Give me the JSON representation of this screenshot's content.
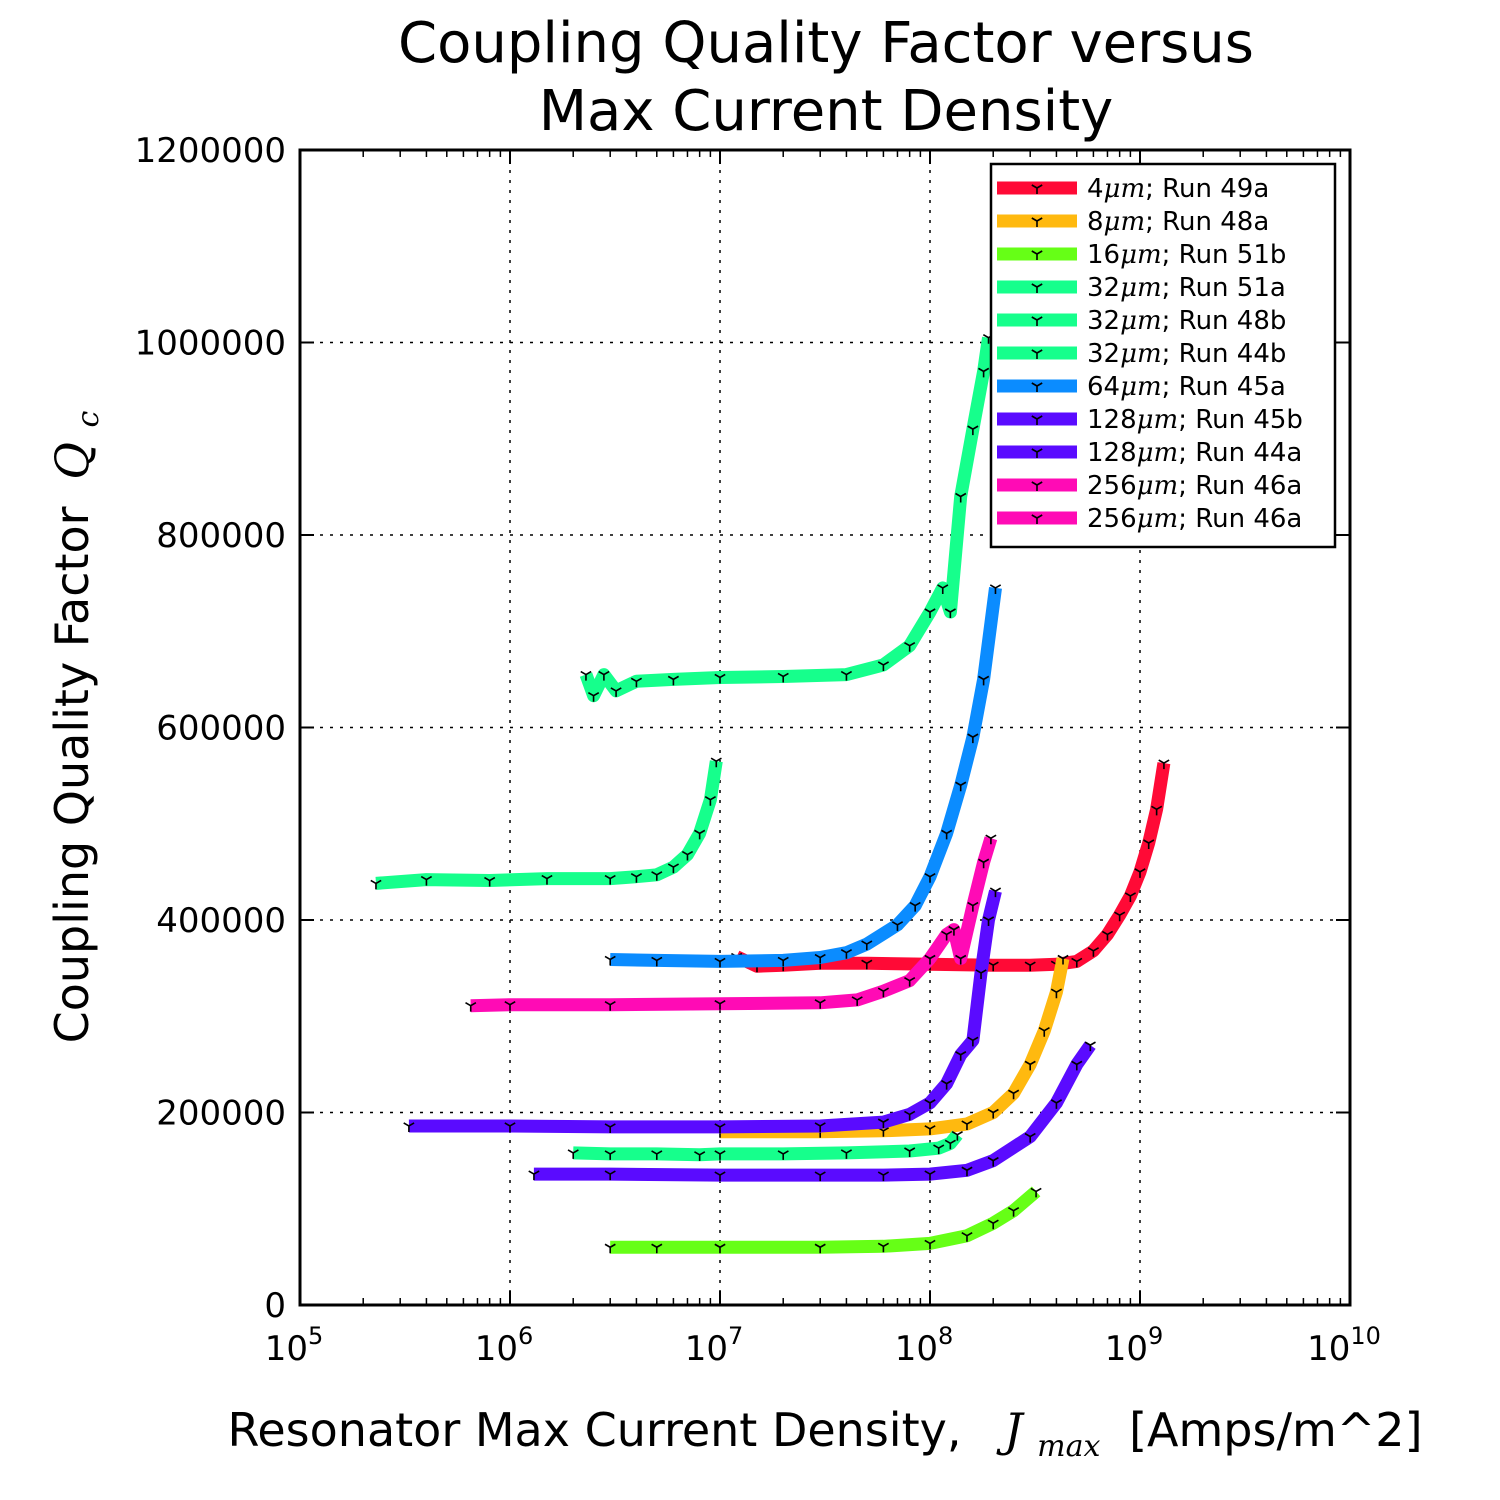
{
  "chart_data": {
    "type": "line",
    "title": [
      "Coupling Quality Factor versus",
      "Max Current Density"
    ],
    "xlabel": {
      "text": "Resonator Max Current Density,",
      "math": "J",
      "math_sub": "max",
      "unit": "[Amps/m^2]"
    },
    "ylabel": {
      "text": "Coupling Quality Factor",
      "math": "Q",
      "math_sub": "c"
    },
    "x_scale": "log",
    "xlim": [
      100000,
      10000000000
    ],
    "ylim": [
      0,
      1200000
    ],
    "x_tick_labels": [
      {
        "base": "10",
        "exp": "5",
        "value": 100000
      },
      {
        "base": "10",
        "exp": "6",
        "value": 1000000
      },
      {
        "base": "10",
        "exp": "7",
        "value": 10000000
      },
      {
        "base": "10",
        "exp": "8",
        "value": 100000000
      },
      {
        "base": "10",
        "exp": "9",
        "value": 1000000000
      },
      {
        "base": "10",
        "exp": "10",
        "value": 10000000000
      }
    ],
    "y_ticks": [
      0,
      200000,
      400000,
      600000,
      800000,
      1000000,
      1200000
    ],
    "y_tick_labels": [
      "0",
      "200000",
      "400000",
      "600000",
      "800000",
      "1000000",
      "1200000"
    ],
    "grid": true,
    "legend_position": "top-right",
    "series": [
      {
        "name": "4μm; Run 49a",
        "size": "4",
        "unit": "μm",
        "run": "; Run 49a",
        "color": "#ff0a36",
        "x": [
          12000000,
          15000000,
          20000000,
          30000000,
          50000000,
          100000000,
          200000000,
          300000000,
          400000000,
          500000000,
          600000000,
          700000000,
          800000000,
          900000000,
          1000000000,
          1100000000,
          1200000000,
          1300000000
        ],
        "y": [
          362000,
          352000,
          353000,
          355000,
          355000,
          354000,
          353000,
          353000,
          354000,
          357000,
          368000,
          385000,
          405000,
          425000,
          450000,
          480000,
          515000,
          563000
        ]
      },
      {
        "name": "8μm; Run 48a",
        "size": "8",
        "unit": "μm",
        "run": "; Run 48a",
        "color": "#ffb90f",
        "x": [
          10000000,
          30000000,
          60000000,
          100000000,
          150000000,
          200000000,
          250000000,
          300000000,
          350000000,
          400000000,
          430000000
        ],
        "y": [
          180000,
          180000,
          181000,
          183000,
          188000,
          200000,
          220000,
          250000,
          285000,
          325000,
          360000
        ]
      },
      {
        "name": "16μm; Run 51b",
        "size": "16",
        "unit": "μm",
        "run": "; Run 51b",
        "color": "#66ff16",
        "x": [
          3000000,
          5000000,
          10000000,
          30000000,
          60000000,
          100000000,
          150000000,
          200000000,
          250000000,
          320000000
        ],
        "y": [
          60000,
          60000,
          60000,
          60000,
          61000,
          64000,
          72000,
          85000,
          98000,
          118000
        ]
      },
      {
        "name": "32μm; Run 51a",
        "size": "32",
        "unit": "μm",
        "run": "; Run 51a",
        "color": "#16ff8c",
        "x": [
          2000000,
          3000000,
          5000000,
          8000000,
          10000000,
          20000000,
          40000000,
          80000000,
          110000000,
          125000000,
          135000000
        ],
        "y": [
          158000,
          157000,
          157000,
          156000,
          157000,
          157000,
          158000,
          160000,
          163000,
          168000,
          177000
        ]
      },
      {
        "name": "32μm; Run 48b",
        "size": "32",
        "unit": "μm",
        "run": "; Run 48b",
        "color": "#16ff8c",
        "x": [
          230000,
          400000,
          800000,
          1500000,
          3000000,
          4000000,
          5000000,
          6000000,
          7000000,
          8000000,
          9000000,
          9600000
        ],
        "y": [
          438000,
          442000,
          441000,
          443000,
          443000,
          445000,
          447000,
          455000,
          468000,
          490000,
          525000,
          565000
        ]
      },
      {
        "name": "32μm; Run 44b",
        "size": "32",
        "unit": "μm",
        "run": "; Run 44b",
        "color": "#16ff8c",
        "x": [
          2300000,
          2500000,
          2800000,
          3200000,
          4000000,
          6000000,
          10000000,
          20000000,
          40000000,
          60000000,
          80000000,
          100000000,
          115000000,
          125000000,
          140000000,
          160000000,
          180000000,
          190000000
        ],
        "y": [
          655000,
          633000,
          655000,
          638000,
          648000,
          650000,
          652000,
          653000,
          655000,
          665000,
          685000,
          720000,
          745000,
          720000,
          840000,
          910000,
          970000,
          1005000
        ]
      },
      {
        "name": "64μm; Run 45a",
        "size": "64",
        "unit": "μm",
        "run": "; Run 45a",
        "color": "#0b8cff",
        "x": [
          3000000,
          5000000,
          10000000,
          20000000,
          30000000,
          40000000,
          50000000,
          70000000,
          85000000,
          100000000,
          120000000,
          140000000,
          160000000,
          180000000,
          205000000
        ],
        "y": [
          359000,
          358000,
          357000,
          358000,
          361000,
          366000,
          375000,
          395000,
          415000,
          445000,
          490000,
          540000,
          590000,
          650000,
          745000
        ]
      },
      {
        "name": "128μm; Run 45b",
        "size": "128",
        "unit": "μm",
        "run": "; Run 45b",
        "color": "#5a0bff",
        "x": [
          330000,
          1000000,
          3000000,
          10000000,
          30000000,
          60000000,
          80000000,
          100000000,
          120000000,
          140000000,
          160000000,
          175000000,
          190000000,
          205000000
        ],
        "y": [
          186000,
          186000,
          185000,
          185000,
          186000,
          190000,
          198000,
          210000,
          230000,
          260000,
          275000,
          345000,
          400000,
          430000
        ]
      },
      {
        "name": "128μm; Run 44a",
        "size": "128",
        "unit": "μm",
        "run": "; Run 44a",
        "color": "#5a0bff",
        "x": [
          1300000,
          3000000,
          10000000,
          30000000,
          60000000,
          100000000,
          150000000,
          200000000,
          300000000,
          400000000,
          500000000,
          580000000
        ],
        "y": [
          136000,
          136000,
          135000,
          135000,
          135000,
          136000,
          140000,
          150000,
          175000,
          210000,
          250000,
          270000
        ]
      },
      {
        "name": "256μm; Run 46a",
        "size": "256",
        "unit": "μm",
        "run": "; Run 46a",
        "color": "#ff0bb5",
        "x": [
          650000,
          1000000,
          3000000,
          10000000,
          30000000,
          45000000,
          60000000,
          80000000,
          100000000,
          120000000,
          130000000,
          140000000,
          160000000,
          180000000,
          195000000
        ],
        "y": [
          311000,
          312000,
          312000,
          313000,
          314000,
          317000,
          326000,
          337000,
          360000,
          385000,
          390000,
          360000,
          415000,
          460000,
          485000
        ]
      },
      {
        "name": "256μm; Run 46a",
        "size": "256",
        "unit": "μm",
        "run": "; Run 46a",
        "color": "#ff0bb5",
        "x": [],
        "y": []
      }
    ]
  }
}
